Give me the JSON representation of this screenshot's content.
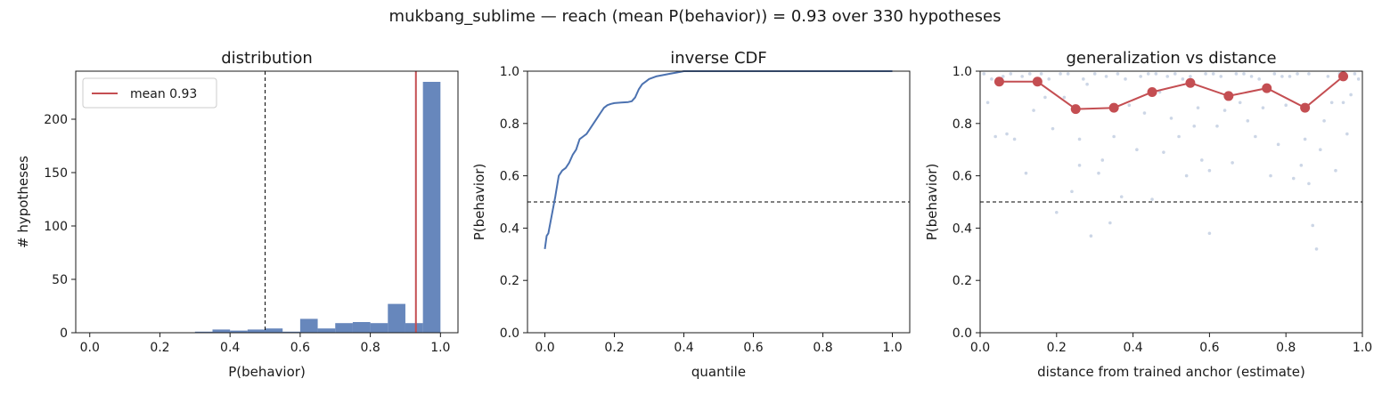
{
  "suptitle": "mukbang_sublime  —  reach (mean P(behavior)) = 0.93  over 330 hypotheses",
  "colors": {
    "blue": "#4c72b0",
    "red": "#c44e52",
    "scatter": "#ccd6e6",
    "axis": "#1a1a1a"
  },
  "chart_data": [
    {
      "type": "bar",
      "title": "distribution",
      "xlabel": "P(behavior)",
      "ylabel": "# hypotheses",
      "xlim": [
        -0.04,
        1.05
      ],
      "ylim": [
        0,
        245
      ],
      "xticks": [
        "0.0",
        "0.2",
        "0.4",
        "0.6",
        "0.8",
        "1.0"
      ],
      "yticks": [
        "0",
        "50",
        "100",
        "150",
        "200"
      ],
      "bin_edges": [
        0.3,
        0.35,
        0.4,
        0.45,
        0.5,
        0.55,
        0.6,
        0.65,
        0.7,
        0.75,
        0.8,
        0.85,
        0.9,
        0.95,
        1.0
      ],
      "counts": [
        1,
        3,
        2,
        3,
        4,
        1,
        13,
        4,
        9,
        10,
        9,
        27,
        9,
        235
      ],
      "threshold": 0.5,
      "mean": 0.93,
      "legend": "mean 0.93",
      "legend_position": "top-left"
    },
    {
      "type": "line",
      "title": "inverse CDF",
      "xlabel": "quantile",
      "ylabel": "P(behavior)",
      "xlim": [
        -0.05,
        1.05
      ],
      "ylim": [
        0,
        1
      ],
      "xticks": [
        "0.0",
        "0.2",
        "0.4",
        "0.6",
        "0.8",
        "1.0"
      ],
      "yticks": [
        "0.0",
        "0.2",
        "0.4",
        "0.6",
        "0.8",
        "1.0"
      ],
      "threshold": 0.5,
      "x": [
        0.0,
        0.005,
        0.01,
        0.02,
        0.03,
        0.04,
        0.05,
        0.06,
        0.07,
        0.08,
        0.09,
        0.1,
        0.11,
        0.12,
        0.13,
        0.14,
        0.15,
        0.16,
        0.17,
        0.18,
        0.19,
        0.2,
        0.22,
        0.24,
        0.25,
        0.26,
        0.27,
        0.28,
        0.29,
        0.3,
        0.32,
        0.34,
        0.36,
        0.38,
        0.4,
        0.5,
        0.7,
        1.0
      ],
      "y": [
        0.32,
        0.37,
        0.38,
        0.45,
        0.52,
        0.6,
        0.62,
        0.63,
        0.65,
        0.68,
        0.7,
        0.74,
        0.75,
        0.76,
        0.78,
        0.8,
        0.82,
        0.84,
        0.86,
        0.87,
        0.875,
        0.878,
        0.88,
        0.882,
        0.885,
        0.9,
        0.93,
        0.95,
        0.96,
        0.97,
        0.98,
        0.985,
        0.99,
        0.995,
        1.0,
        1.0,
        1.0,
        1.0
      ]
    },
    {
      "type": "scatter",
      "title": "generalization vs distance",
      "xlabel": "distance from trained anchor (estimate)",
      "ylabel": "P(behavior)",
      "xlim": [
        0,
        1
      ],
      "ylim": [
        0,
        1
      ],
      "xticks": [
        "0.0",
        "0.2",
        "0.4",
        "0.6",
        "0.8",
        "1.0"
      ],
      "yticks": [
        "0.0",
        "0.2",
        "0.4",
        "0.6",
        "0.8",
        "1.0"
      ],
      "threshold": 0.5,
      "binned": {
        "x": [
          0.05,
          0.15,
          0.25,
          0.35,
          0.45,
          0.55,
          0.65,
          0.75,
          0.85,
          0.95
        ],
        "y": [
          0.96,
          0.96,
          0.855,
          0.86,
          0.92,
          0.955,
          0.905,
          0.935,
          0.86,
          0.98
        ]
      },
      "points": [
        [
          0.02,
          0.88
        ],
        [
          0.04,
          0.75
        ],
        [
          0.07,
          0.76
        ],
        [
          0.09,
          0.74
        ],
        [
          0.12,
          0.61
        ],
        [
          0.14,
          0.85
        ],
        [
          0.17,
          0.9
        ],
        [
          0.19,
          0.78
        ],
        [
          0.2,
          0.46
        ],
        [
          0.22,
          0.9
        ],
        [
          0.24,
          0.54
        ],
        [
          0.26,
          0.64
        ],
        [
          0.26,
          0.74
        ],
        [
          0.28,
          0.95
        ],
        [
          0.29,
          0.37
        ],
        [
          0.31,
          0.61
        ],
        [
          0.32,
          0.66
        ],
        [
          0.34,
          0.42
        ],
        [
          0.35,
          0.75
        ],
        [
          0.37,
          0.52
        ],
        [
          0.39,
          0.87
        ],
        [
          0.41,
          0.7
        ],
        [
          0.43,
          0.84
        ],
        [
          0.45,
          0.51
        ],
        [
          0.47,
          0.92
        ],
        [
          0.48,
          0.69
        ],
        [
          0.5,
          0.82
        ],
        [
          0.52,
          0.75
        ],
        [
          0.54,
          0.6
        ],
        [
          0.56,
          0.79
        ],
        [
          0.57,
          0.86
        ],
        [
          0.58,
          0.66
        ],
        [
          0.6,
          0.62
        ],
        [
          0.6,
          0.38
        ],
        [
          0.62,
          0.79
        ],
        [
          0.64,
          0.85
        ],
        [
          0.66,
          0.65
        ],
        [
          0.68,
          0.88
        ],
        [
          0.7,
          0.81
        ],
        [
          0.72,
          0.75
        ],
        [
          0.74,
          0.86
        ],
        [
          0.76,
          0.6
        ],
        [
          0.78,
          0.72
        ],
        [
          0.8,
          0.87
        ],
        [
          0.82,
          0.59
        ],
        [
          0.84,
          0.64
        ],
        [
          0.85,
          0.74
        ],
        [
          0.86,
          0.57
        ],
        [
          0.87,
          0.41
        ],
        [
          0.88,
          0.32
        ],
        [
          0.89,
          0.7
        ],
        [
          0.9,
          0.81
        ],
        [
          0.92,
          0.88
        ],
        [
          0.93,
          0.62
        ],
        [
          0.95,
          0.88
        ],
        [
          0.96,
          0.76
        ],
        [
          0.97,
          0.91
        ],
        [
          0.03,
          0.97
        ],
        [
          0.08,
          0.99
        ],
        [
          0.11,
          0.98
        ],
        [
          0.16,
          0.99
        ],
        [
          0.23,
          0.99
        ],
        [
          0.27,
          0.97
        ],
        [
          0.33,
          0.98
        ],
        [
          0.36,
          0.99
        ],
        [
          0.42,
          0.98
        ],
        [
          0.46,
          0.99
        ],
        [
          0.53,
          0.97
        ],
        [
          0.59,
          0.99
        ],
        [
          0.63,
          0.98
        ],
        [
          0.69,
          0.99
        ],
        [
          0.73,
          0.97
        ],
        [
          0.79,
          0.98
        ],
        [
          0.83,
          0.99
        ],
        [
          0.91,
          0.98
        ],
        [
          0.94,
          0.99
        ],
        [
          0.98,
          0.99
        ],
        [
          0.01,
          0.99
        ],
        [
          0.06,
          0.98
        ],
        [
          0.13,
          0.99
        ],
        [
          0.18,
          0.97
        ],
        [
          0.21,
          0.99
        ],
        [
          0.3,
          0.99
        ],
        [
          0.38,
          0.97
        ],
        [
          0.44,
          0.99
        ],
        [
          0.49,
          0.98
        ],
        [
          0.51,
          0.99
        ],
        [
          0.55,
          0.98
        ],
        [
          0.61,
          0.99
        ],
        [
          0.67,
          0.99
        ],
        [
          0.71,
          0.98
        ],
        [
          0.77,
          0.99
        ],
        [
          0.81,
          0.98
        ],
        [
          0.86,
          0.99
        ],
        [
          0.99,
          0.97
        ]
      ]
    }
  ]
}
